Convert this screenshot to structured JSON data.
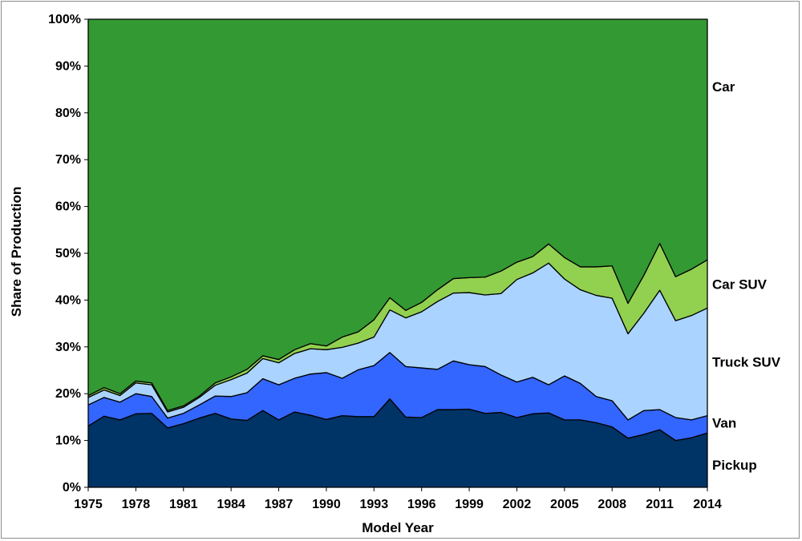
{
  "chart_data": {
    "type": "area",
    "stacked": true,
    "xlabel": "Model Year",
    "ylabel": "Share of Production",
    "ylim": [
      0,
      100
    ],
    "yticks": [
      "0%",
      "10%",
      "20%",
      "30%",
      "40%",
      "50%",
      "60%",
      "70%",
      "80%",
      "90%",
      "100%"
    ],
    "xticks": [
      "1975",
      "1978",
      "1981",
      "1984",
      "1987",
      "1990",
      "1993",
      "1996",
      "1999",
      "2002",
      "2005",
      "2008",
      "2011",
      "2014"
    ],
    "x": [
      1975,
      1976,
      1977,
      1978,
      1979,
      1980,
      1981,
      1982,
      1983,
      1984,
      1985,
      1986,
      1987,
      1988,
      1989,
      1990,
      1991,
      1992,
      1993,
      1994,
      1995,
      1996,
      1997,
      1998,
      1999,
      2000,
      2001,
      2002,
      2003,
      2004,
      2005,
      2006,
      2007,
      2008,
      2009,
      2010,
      2011,
      2012,
      2013,
      2014
    ],
    "series": [
      {
        "name": "Pickup",
        "color": "#003366",
        "values": [
          13.1,
          15.2,
          14.4,
          15.7,
          15.8,
          12.7,
          13.6,
          14.8,
          15.8,
          14.6,
          14.3,
          16.4,
          14.4,
          16.1,
          15.4,
          14.5,
          15.3,
          15.1,
          15.1,
          18.9,
          15.0,
          14.9,
          16.6,
          16.6,
          16.7,
          15.8,
          16.0,
          14.9,
          15.7,
          15.9,
          14.4,
          14.4,
          13.8,
          12.9,
          10.5,
          11.3,
          12.3,
          10.0,
          10.6,
          11.6
        ]
      },
      {
        "name": "Van",
        "color": "#3366ff",
        "values": [
          4.5,
          4.0,
          3.8,
          4.3,
          3.6,
          2.1,
          2.2,
          2.8,
          3.7,
          4.8,
          5.9,
          6.8,
          7.5,
          7.2,
          8.8,
          10.0,
          8.0,
          10.0,
          10.9,
          9.9,
          10.8,
          10.6,
          8.6,
          10.4,
          9.5,
          10.0,
          8.0,
          7.6,
          7.8,
          6.0,
          9.4,
          7.8,
          5.6,
          5.6,
          3.9,
          5.1,
          4.3,
          4.9,
          3.8,
          3.7
        ]
      },
      {
        "name": "Truck SUV",
        "color": "#aad4ff",
        "values": [
          1.6,
          1.6,
          1.4,
          2.3,
          2.5,
          1.3,
          1.3,
          1.6,
          2.3,
          3.6,
          4.2,
          4.3,
          4.7,
          5.3,
          5.4,
          4.9,
          6.6,
          5.7,
          6.1,
          9.1,
          10.4,
          12.0,
          14.5,
          14.5,
          15.4,
          15.3,
          17.4,
          21.9,
          22.3,
          26.0,
          20.7,
          20.0,
          21.6,
          21.9,
          18.4,
          20.8,
          25.5,
          20.7,
          22.3,
          23.0
        ]
      },
      {
        "name": "Car SUV",
        "color": "#92d050",
        "values": [
          0.4,
          0.5,
          0.4,
          0.4,
          0.4,
          0.3,
          0.3,
          0.3,
          0.5,
          0.6,
          0.8,
          0.6,
          0.7,
          0.8,
          1.1,
          0.8,
          2.2,
          2.4,
          3.7,
          2.6,
          1.6,
          2.0,
          2.5,
          3.1,
          3.2,
          3.8,
          4.8,
          3.7,
          3.5,
          4.1,
          4.6,
          4.9,
          6.1,
          6.9,
          6.5,
          8.1,
          10.0,
          9.4,
          9.9,
          10.3
        ]
      },
      {
        "name": "Car",
        "color": "#339933",
        "values": [
          80.4,
          78.7,
          80.0,
          77.3,
          77.7,
          83.6,
          82.6,
          80.5,
          77.7,
          76.4,
          74.8,
          71.9,
          72.7,
          70.6,
          69.3,
          69.8,
          67.9,
          66.8,
          64.2,
          59.5,
          62.2,
          60.5,
          57.8,
          55.4,
          55.2,
          55.1,
          53.8,
          51.9,
          50.7,
          48.0,
          50.9,
          52.9,
          52.9,
          52.7,
          60.7,
          54.7,
          47.9,
          55.0,
          53.4,
          51.4
        ]
      }
    ]
  }
}
